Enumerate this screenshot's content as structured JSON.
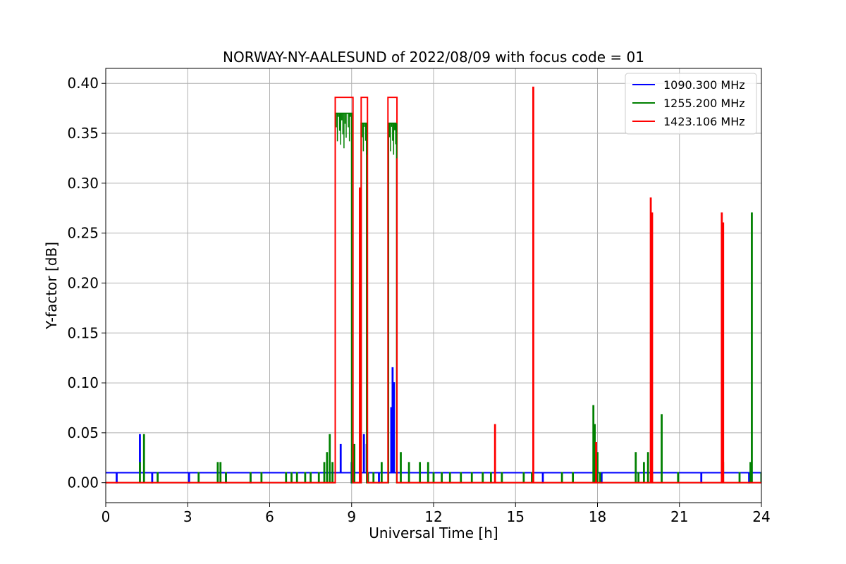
{
  "chart_data": {
    "type": "line",
    "title": "NORWAY-NY-AALESUND of 2022/08/09 with focus code = 01",
    "xlabel": "Universal Time [h]",
    "ylabel": "Y-factor [dB]",
    "xlim": [
      0,
      24
    ],
    "ylim": [
      -0.02,
      0.415
    ],
    "xticks": [
      0,
      3,
      6,
      9,
      12,
      15,
      18,
      21,
      24
    ],
    "xtick_labels": [
      "0",
      "3",
      "6",
      "9",
      "12",
      "15",
      "18",
      "21",
      "24"
    ],
    "yticks": [
      0.0,
      0.05,
      0.1,
      0.15,
      0.2,
      0.25,
      0.3,
      0.35,
      0.4
    ],
    "ytick_labels": [
      "0.00",
      "0.05",
      "0.10",
      "0.15",
      "0.20",
      "0.25",
      "0.30",
      "0.35",
      "0.40"
    ],
    "grid": true,
    "legend_position": "top-right",
    "series": [
      {
        "name": "1090.300 MHz",
        "color": "#0000ff",
        "baseline": 0.01,
        "dips": [
          0.4,
          1.7,
          3.05,
          4.4,
          5.3,
          9.0,
          10.0,
          16.0,
          18.15,
          21.8,
          23.55,
          24.0
        ],
        "spikes": [
          [
            1.25,
            0.048
          ],
          [
            9.0,
            0.02
          ],
          [
            9.45,
            0.048
          ],
          [
            9.55,
            0.038
          ],
          [
            10.45,
            0.075
          ],
          [
            10.5,
            0.115
          ],
          [
            10.55,
            0.1
          ],
          [
            8.6,
            0.038
          ]
        ]
      },
      {
        "name": "1255.200 MHz",
        "color": "#008000",
        "spikes": [
          [
            1.25,
            0.02
          ],
          [
            1.4,
            0.048
          ],
          [
            1.9,
            0.01
          ],
          [
            3.4,
            0.01
          ],
          [
            4.1,
            0.02
          ],
          [
            4.2,
            0.02
          ],
          [
            4.4,
            0.01
          ],
          [
            5.3,
            0.01
          ],
          [
            5.7,
            0.01
          ],
          [
            6.6,
            0.01
          ],
          [
            6.8,
            0.01
          ],
          [
            7.0,
            0.01
          ],
          [
            7.3,
            0.01
          ],
          [
            7.5,
            0.01
          ],
          [
            7.8,
            0.01
          ],
          [
            8.0,
            0.02
          ],
          [
            8.1,
            0.03
          ],
          [
            8.2,
            0.048
          ],
          [
            8.3,
            0.02
          ],
          [
            9.1,
            0.038
          ],
          [
            9.3,
            0.02
          ],
          [
            9.6,
            0.01
          ],
          [
            9.8,
            0.01
          ],
          [
            10.1,
            0.02
          ],
          [
            10.8,
            0.03
          ],
          [
            11.1,
            0.02
          ],
          [
            11.5,
            0.02
          ],
          [
            11.8,
            0.02
          ],
          [
            12.0,
            0.01
          ],
          [
            12.3,
            0.01
          ],
          [
            12.6,
            0.01
          ],
          [
            13.0,
            0.01
          ],
          [
            13.4,
            0.01
          ],
          [
            13.8,
            0.01
          ],
          [
            14.1,
            0.01
          ],
          [
            14.5,
            0.01
          ],
          [
            15.3,
            0.01
          ],
          [
            15.6,
            0.01
          ],
          [
            16.7,
            0.01
          ],
          [
            17.1,
            0.01
          ],
          [
            17.85,
            0.077
          ],
          [
            17.9,
            0.058
          ],
          [
            18.0,
            0.03
          ],
          [
            18.1,
            0.01
          ],
          [
            19.4,
            0.03
          ],
          [
            19.5,
            0.01
          ],
          [
            19.7,
            0.02
          ],
          [
            19.85,
            0.03
          ],
          [
            20.0,
            0.01
          ],
          [
            20.35,
            0.068
          ],
          [
            20.95,
            0.01
          ],
          [
            22.6,
            0.02
          ],
          [
            23.2,
            0.01
          ],
          [
            23.6,
            0.02
          ],
          [
            23.65,
            0.27
          ],
          [
            24.0,
            0.01
          ]
        ],
        "blocks": [
          [
            8.4,
            9.0,
            0.37
          ],
          [
            9.35,
            9.55,
            0.36
          ],
          [
            10.35,
            10.65,
            0.36
          ]
        ]
      },
      {
        "name": "1423.106 MHz",
        "color": "#ff0000",
        "blocks": [
          [
            8.4,
            9.05,
            0.386
          ],
          [
            9.35,
            9.58,
            0.386
          ],
          [
            10.33,
            10.66,
            0.386
          ]
        ],
        "spikes": [
          [
            14.25,
            0.058
          ],
          [
            15.65,
            0.396
          ],
          [
            17.95,
            0.04
          ],
          [
            19.95,
            0.285
          ],
          [
            20.0,
            0.27
          ],
          [
            22.55,
            0.27
          ],
          [
            22.6,
            0.26
          ],
          [
            9.3,
            0.295
          ]
        ]
      }
    ]
  }
}
